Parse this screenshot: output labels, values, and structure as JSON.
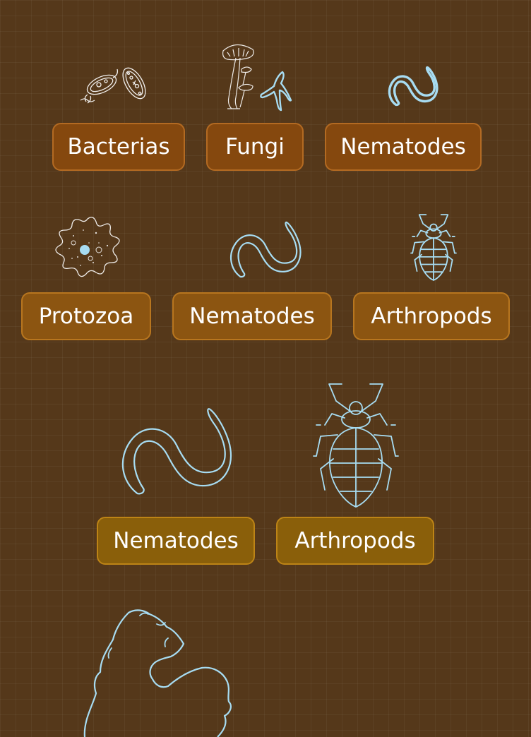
{
  "colors": {
    "background": "#55381a",
    "icon_stroke": "#a7dcf2",
    "label_text": "#ffffff",
    "row1_fill": "#85480e",
    "row2_fill": "#8c5511",
    "row3_fill": "#8a5f0a"
  },
  "row1": [
    {
      "label": "Bacterias",
      "icon": "bacteria-icon"
    },
    {
      "label": "Fungi",
      "icon": "fungi-icon"
    },
    {
      "label": "Nematodes",
      "icon": "nematode-icon"
    }
  ],
  "row2": [
    {
      "label": "Protozoa",
      "icon": "protozoa-icon"
    },
    {
      "label": "Nematodes",
      "icon": "nematode-icon"
    },
    {
      "label": "Arthropods",
      "icon": "arthropod-icon"
    }
  ],
  "row3": [
    {
      "label": "Nematodes",
      "icon": "nematode-icon"
    },
    {
      "label": "Arthropods",
      "icon": "arthropod-icon"
    }
  ],
  "row4": [
    {
      "icon": "bird-icon"
    }
  ]
}
